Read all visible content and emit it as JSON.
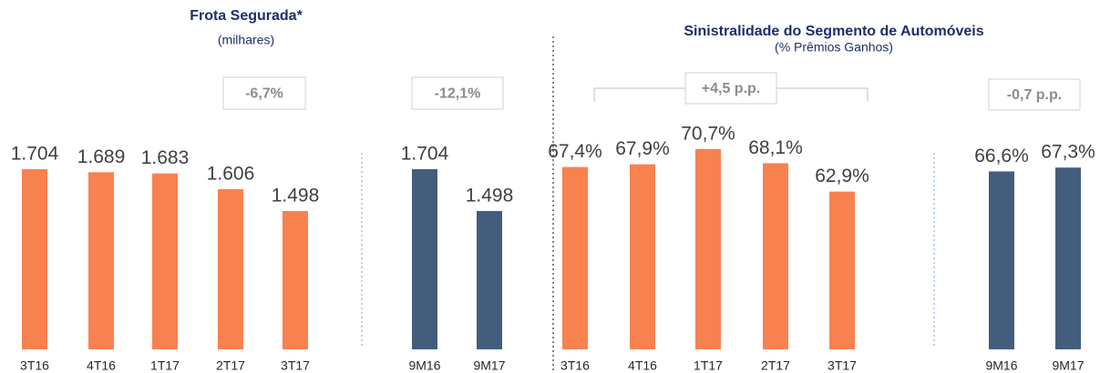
{
  "chart_data": [
    {
      "type": "bar",
      "title": "Frota Segurada*",
      "subtitle": "(milhares)",
      "ylim": [
        817,
        1865
      ],
      "panels": [
        {
          "categories": [
            "3T16",
            "4T16",
            "1T17",
            "2T17",
            "3T17"
          ],
          "values": [
            1704,
            1689,
            1683,
            1606,
            1498
          ],
          "value_labels": [
            "1.704",
            "1.689",
            "1.683",
            "1.606",
            "1.498"
          ],
          "color": "#f88150",
          "annotation": "-6,7%"
        },
        {
          "categories": [
            "9M16",
            "9M17"
          ],
          "values": [
            1704,
            1498
          ],
          "value_labels": [
            "1.704",
            "1.498"
          ],
          "color": "#435d7c",
          "annotation": "-12,1%"
        }
      ]
    },
    {
      "type": "bar",
      "title": "Sinistralidade do Segmento de Automóveis",
      "subtitle": "(% Prêmios Ganhos)",
      "ylim": [
        34,
        73
      ],
      "panels": [
        {
          "categories": [
            "3T16",
            "4T16",
            "1T17",
            "2T17",
            "3T17"
          ],
          "values": [
            67.4,
            67.9,
            70.7,
            68.1,
            62.9
          ],
          "value_labels": [
            "67,4%",
            "67,9%",
            "70,7%",
            "68,1%",
            "62,9%"
          ],
          "color": "#f88150",
          "annotation": "+4,5 p.p."
        },
        {
          "categories": [
            "9M16",
            "9M17"
          ],
          "values": [
            66.6,
            67.3
          ],
          "value_labels": [
            "66,6%",
            "67,3%"
          ],
          "color": "#435d7c",
          "annotation": "-0,7 p.p."
        }
      ]
    }
  ]
}
